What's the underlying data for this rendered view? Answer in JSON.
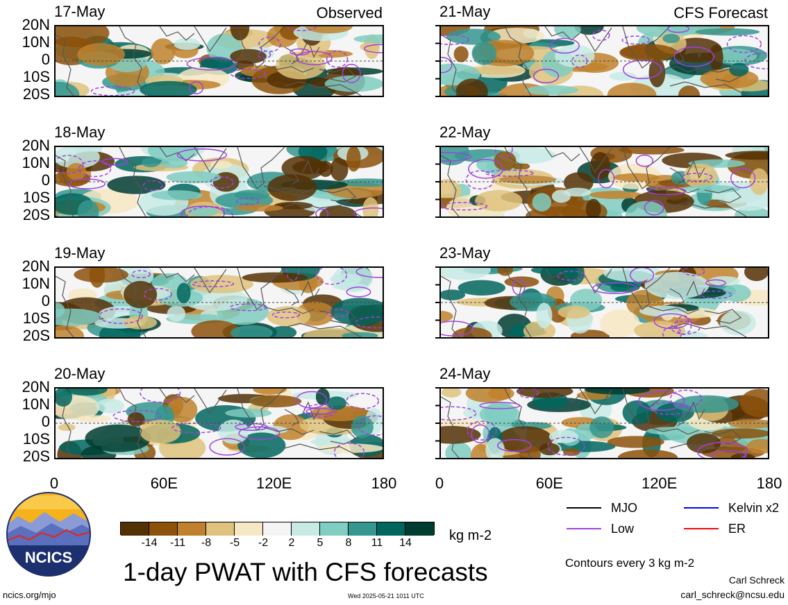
{
  "title": "1-day PWAT with CFS forecasts",
  "units": "kg m-2",
  "contour_note": "Contours every 3 kg m-2",
  "source_url": "ncics.org/mjo",
  "timestamp": "Wed 2025-05-21 1011 UTC",
  "author": "Carl Schreck",
  "email": "carl_schreck@ncsu.edu",
  "logo_text": "NCICS",
  "column_labels": {
    "left": "Observed",
    "right": "CFS Forecast"
  },
  "lat_labels": [
    "20N",
    "10N",
    "0",
    "10S",
    "20S"
  ],
  "lon_labels": [
    "0",
    "60E",
    "120E",
    "180"
  ],
  "panels": [
    {
      "date": "17-May",
      "kind": "observed"
    },
    {
      "date": "18-May",
      "kind": "observed"
    },
    {
      "date": "19-May",
      "kind": "observed"
    },
    {
      "date": "20-May",
      "kind": "observed"
    },
    {
      "date": "21-May",
      "kind": "forecast"
    },
    {
      "date": "22-May",
      "kind": "forecast"
    },
    {
      "date": "23-May",
      "kind": "forecast"
    },
    {
      "date": "24-May",
      "kind": "forecast"
    }
  ],
  "colorbar": {
    "labels": [
      "-14",
      "-11",
      "-8",
      "-5",
      "-2",
      "2",
      "5",
      "8",
      "11",
      "14"
    ],
    "colors": [
      "#543005",
      "#8c510a",
      "#bf812d",
      "#dfc27d",
      "#f6e8c3",
      "#f5f5f5",
      "#c7eae5",
      "#80cdc1",
      "#35978f",
      "#01665e",
      "#003c30"
    ]
  },
  "legend": [
    {
      "label": "MJO",
      "color": "#000000"
    },
    {
      "label": "Kelvin x2",
      "color": "#0000ff"
    },
    {
      "label": "Low",
      "color": "#a040e0"
    },
    {
      "label": "ER",
      "color": "#ff0000"
    }
  ],
  "chart_data": {
    "type": "heatmap",
    "variable": "PWAT anomaly",
    "xlim": [
      0,
      180
    ],
    "ylim": [
      -20,
      20
    ],
    "x_ticks": [
      0,
      60,
      120,
      180
    ],
    "y_ticks": [
      20,
      10,
      0,
      -10,
      -20
    ],
    "levels": [
      -14,
      -11,
      -8,
      -5,
      -2,
      2,
      5,
      8,
      11,
      14
    ],
    "panel_dates": [
      "17-May",
      "18-May",
      "19-May",
      "20-May",
      "21-May",
      "22-May",
      "23-May",
      "24-May"
    ]
  }
}
